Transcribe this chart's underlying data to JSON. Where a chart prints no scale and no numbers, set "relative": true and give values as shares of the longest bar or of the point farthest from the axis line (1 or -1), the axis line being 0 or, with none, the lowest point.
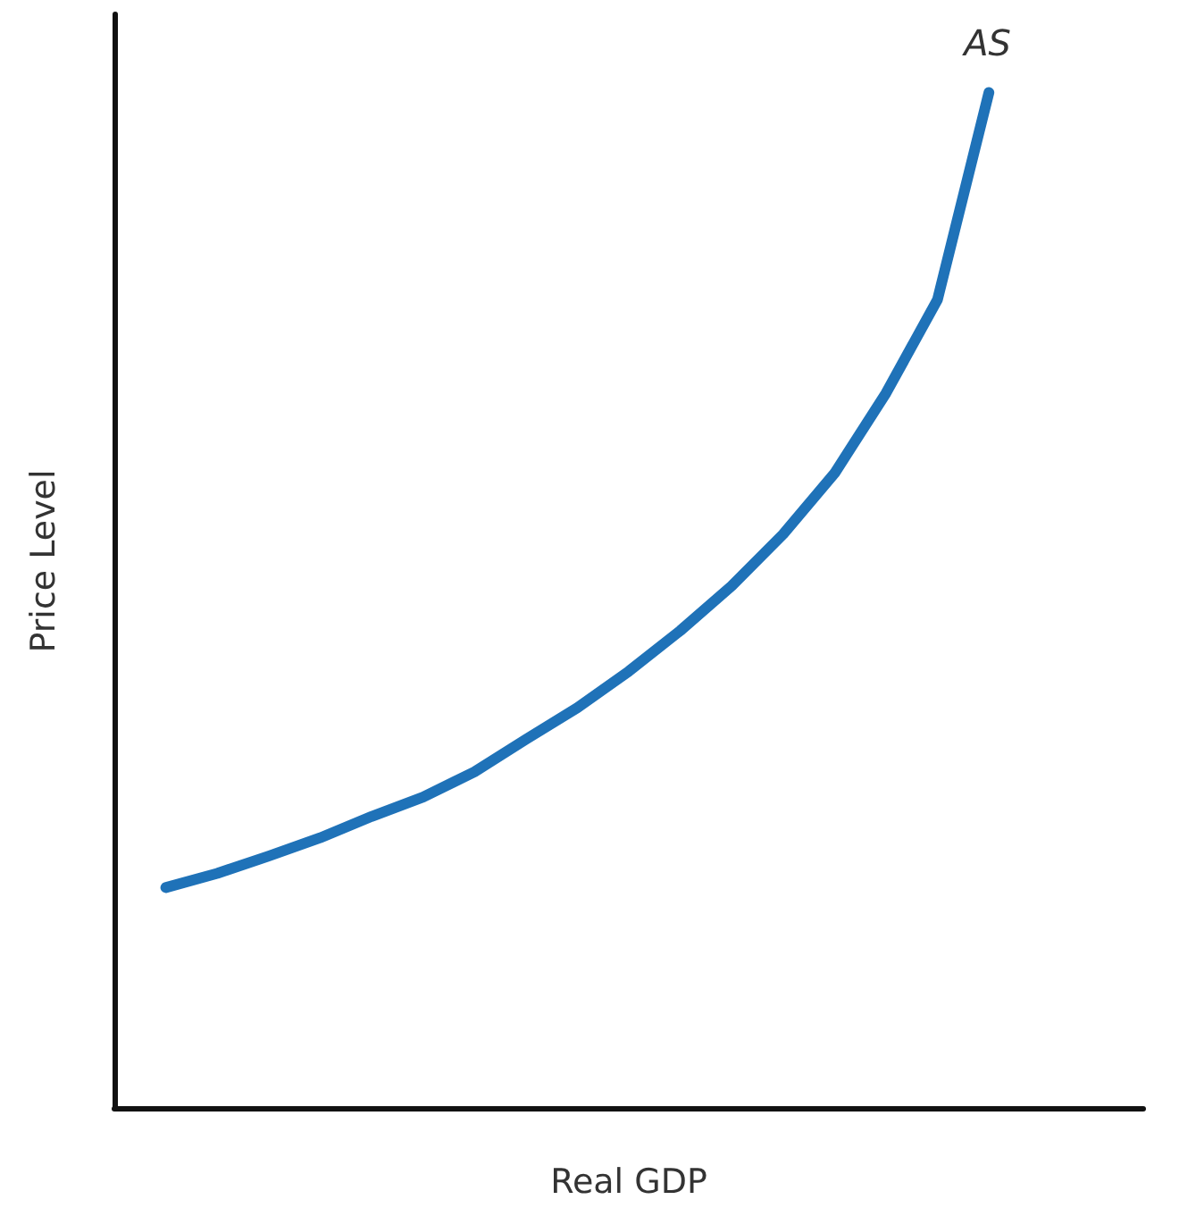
{
  "chart_data": {
    "type": "line",
    "relative": true,
    "xlabel": "Real GDP",
    "ylabel": "Price Level",
    "categories": [
      null,
      null,
      null,
      null,
      null,
      null,
      null,
      null,
      null,
      null,
      null,
      null,
      null,
      null,
      null,
      null,
      null,
      null,
      null,
      null,
      null
    ],
    "series": [
      {
        "name": "AS",
        "color": "#1f72b8",
        "values": [
          null,
          0.217,
          0.231,
          0.248,
          0.266,
          0.287,
          0.306,
          0.331,
          0.363,
          0.394,
          0.43,
          0.47,
          0.514,
          0.565,
          0.625,
          0.704,
          0.796,
          1,
          null,
          null,
          null
        ]
      }
    ],
    "grid": false,
    "legend": false,
    "marker": "none",
    "line_style": "solid"
  }
}
